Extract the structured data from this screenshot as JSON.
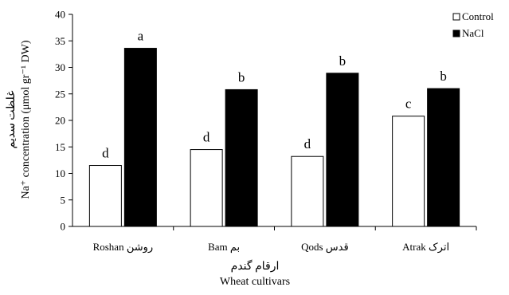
{
  "chart_data": {
    "type": "bar",
    "categories": [
      "Roshan روشن",
      "Bam بم",
      "Qods قدس",
      "Atrak اترک"
    ],
    "series": [
      {
        "name": "Control",
        "values": [
          11.5,
          14.5,
          13.2,
          20.8
        ],
        "letters": [
          "d",
          "d",
          "d",
          "c"
        ],
        "color": "#ffffff"
      },
      {
        "name": "NaCl",
        "values": [
          33.6,
          25.8,
          28.9,
          26.0
        ],
        "letters": [
          "a",
          "b",
          "b",
          "b"
        ],
        "color": "#000000"
      }
    ],
    "yticks": [
      0,
      5,
      10,
      15,
      20,
      25,
      30,
      35,
      40
    ],
    "ylim": [
      0,
      40
    ],
    "xlabel_fa": "ارقام گندم",
    "xlabel_en": "Wheat cultivars",
    "ylabel_fa": "غلظت سدیم",
    "ylabel_en": "Na⁺ concentration (μmol gr⁻¹ DW)",
    "grid": false,
    "legend_position": "top-right"
  }
}
